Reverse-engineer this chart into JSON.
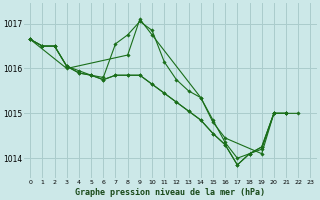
{
  "title": "Graphe pression niveau de la mer (hPa)",
  "bg_color": "#cce8e8",
  "grid_color": "#aacccc",
  "line_color": "#1a6e1a",
  "marker_color": "#1a6e1a",
  "xlim": [
    -0.5,
    23.5
  ],
  "ylim": [
    1013.55,
    1017.45
  ],
  "yticks": [
    1014,
    1015,
    1016,
    1017
  ],
  "xticks": [
    0,
    1,
    2,
    3,
    4,
    5,
    6,
    7,
    8,
    9,
    10,
    11,
    12,
    13,
    14,
    15,
    16,
    17,
    18,
    19,
    20,
    21,
    22,
    23
  ],
  "series": [
    [
      [
        0,
        1016.65
      ],
      [
        1,
        1016.5
      ],
      [
        2,
        1016.5
      ],
      [
        3,
        1016.05
      ],
      [
        4,
        1015.95
      ],
      [
        5,
        1015.85
      ],
      [
        6,
        1015.8
      ],
      [
        7,
        1016.55
      ],
      [
        8,
        1016.75
      ],
      [
        9,
        1017.05
      ],
      [
        10,
        1016.85
      ],
      [
        11,
        1016.15
      ],
      [
        12,
        1015.75
      ],
      [
        13,
        1015.5
      ],
      [
        14,
        1015.35
      ],
      [
        15,
        1014.85
      ],
      [
        16,
        1014.35
      ],
      [
        17,
        1014.0
      ],
      [
        18,
        1014.1
      ],
      [
        19,
        1014.2
      ],
      [
        20,
        1015.0
      ],
      [
        21,
        1015.0
      ]
    ],
    [
      [
        0,
        1016.65
      ],
      [
        1,
        1016.5
      ],
      [
        2,
        1016.5
      ],
      [
        3,
        1016.05
      ],
      [
        4,
        1015.9
      ],
      [
        5,
        1015.85
      ],
      [
        6,
        1015.75
      ],
      [
        7,
        1015.85
      ],
      [
        8,
        1015.85
      ],
      [
        9,
        1015.85
      ],
      [
        10,
        1015.65
      ],
      [
        11,
        1015.45
      ],
      [
        12,
        1015.25
      ],
      [
        13,
        1015.05
      ],
      [
        14,
        1014.85
      ],
      [
        15,
        1014.55
      ],
      [
        16,
        1014.3
      ],
      [
        17,
        1013.85
      ],
      [
        18,
        1014.1
      ],
      [
        19,
        1014.25
      ],
      [
        20,
        1015.0
      ],
      [
        21,
        1015.0
      ]
    ],
    [
      [
        0,
        1016.65
      ],
      [
        1,
        1016.5
      ],
      [
        2,
        1016.5
      ],
      [
        3,
        1016.05
      ],
      [
        4,
        1015.9
      ],
      [
        5,
        1015.85
      ],
      [
        6,
        1015.75
      ],
      [
        7,
        1015.85
      ],
      [
        8,
        1015.85
      ],
      [
        9,
        1015.85
      ],
      [
        10,
        1015.65
      ],
      [
        11,
        1015.45
      ],
      [
        12,
        1015.25
      ],
      [
        13,
        1015.05
      ],
      [
        14,
        1014.85
      ],
      [
        15,
        1014.55
      ],
      [
        16,
        1014.3
      ],
      [
        17,
        1013.85
      ],
      [
        18,
        1014.1
      ],
      [
        19,
        1014.25
      ],
      [
        20,
        1015.0
      ],
      [
        21,
        1015.0
      ]
    ],
    [
      [
        0,
        1016.65
      ],
      [
        3,
        1016.0
      ],
      [
        8,
        1016.3
      ],
      [
        9,
        1017.1
      ],
      [
        10,
        1016.75
      ],
      [
        14,
        1015.35
      ],
      [
        15,
        1014.8
      ],
      [
        16,
        1014.45
      ],
      [
        19,
        1014.1
      ],
      [
        20,
        1015.0
      ],
      [
        21,
        1015.0
      ],
      [
        22,
        1015.0
      ]
    ]
  ]
}
